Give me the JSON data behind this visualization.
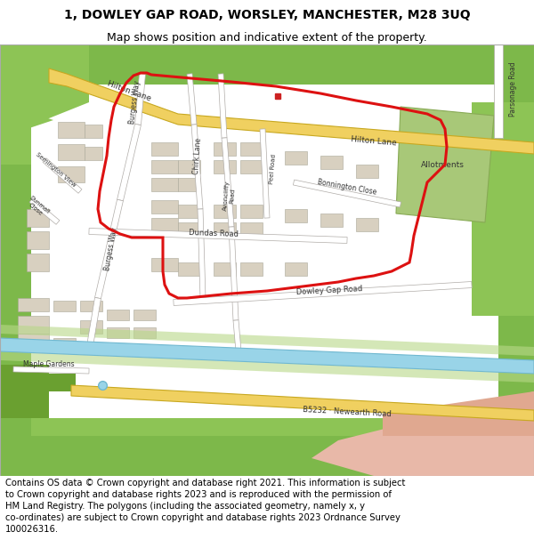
{
  "title_line1": "1, DOWLEY GAP ROAD, WORSLEY, MANCHESTER, M28 3UQ",
  "title_line2": "Map shows position and indicative extent of the property.",
  "footer_text": "Contains OS data © Crown copyright and database right 2021. This information is subject to Crown copyright and database rights 2023 and is reproduced with the permission of HM Land Registry. The polygons (including the associated geometry, namely x, y co-ordinates) are subject to Crown copyright and database rights 2023 Ordnance Survey 100026316.",
  "title_fontsize": 10,
  "subtitle_fontsize": 9,
  "footer_fontsize": 7.2,
  "map_bg": "#f0ece2",
  "white": "#ffffff",
  "green_edge": "#7db84a",
  "green_mid": "#8dc455",
  "green_dark": "#6aa030",
  "allotment_color": "#a8c878",
  "water_color": "#99d4e8",
  "water_border": "#70b8d0",
  "road_yellow": "#f0d060",
  "road_yellow_border": "#c8a820",
  "road_white": "#ffffff",
  "road_gray": "#d0cdc8",
  "road_border": "#b0aca8",
  "pink_strip": "#e8b8a8",
  "building_color": "#d8d0c0",
  "plot_red": "#dd1111",
  "plot_marker": "#cc2222",
  "text_dark": "#333333",
  "title_bg": "#ffffff",
  "footer_bg": "#ffffff"
}
